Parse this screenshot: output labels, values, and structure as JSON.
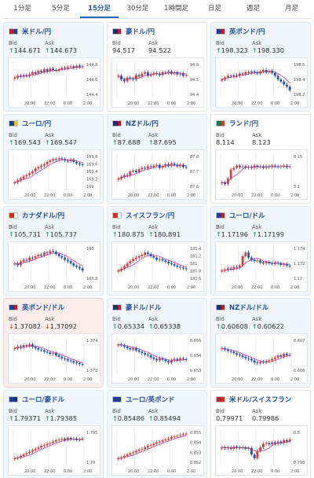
{
  "tabs": [
    "1分足",
    "5分足",
    "15分足",
    "30分足",
    "1時間足",
    "日足",
    "週足",
    "月足"
  ],
  "active_tab": 2,
  "labels": {
    "bid": "Bid",
    "ask": "Ask"
  },
  "cards": [
    {
      "pair": "米ドル/円",
      "bid": "144.671",
      "ask": "144.673",
      "trend": "up",
      "flag": [
        "#b22234",
        "#2b3a8c"
      ],
      "ticks": [
        "144.8",
        "144.6",
        "144.4"
      ],
      "times": [
        "20:00",
        "22:00",
        "0:00",
        "2:00"
      ],
      "series": [
        0.55,
        0.6,
        0.58,
        0.62,
        0.6,
        0.64,
        0.7,
        0.66,
        0.74,
        0.7,
        0.78,
        0.72,
        0.8,
        0.76,
        0.74,
        0.78,
        0.82,
        0.8,
        0.84,
        0.86,
        0.82,
        0.88,
        0.84,
        0.86
      ]
    },
    {
      "pair": "豪ドル/円",
      "bid": "94.517",
      "ask": "94.522",
      "trend": "neutral",
      "flag": [
        "#1a2e6e",
        "#c8102e"
      ],
      "ticks": [
        "94.6",
        "94.5",
        "94.4"
      ],
      "times": [
        "20:00",
        "22:00",
        "0:00",
        "2:00"
      ],
      "series": [
        0.6,
        0.5,
        0.45,
        0.55,
        0.52,
        0.5,
        0.62,
        0.58,
        0.66,
        0.7,
        0.6,
        0.64,
        0.68,
        0.66,
        0.62,
        0.7,
        0.68,
        0.72,
        0.66,
        0.7,
        0.64,
        0.66,
        0.6,
        0.62
      ]
    },
    {
      "pair": "英ポンド/円",
      "bid": "198.323",
      "ask": "198.330",
      "trend": "up",
      "flag": [
        "#1f3e8c",
        "#c8102e"
      ],
      "ticks": [
        "198.6",
        "198.4",
        "198.2"
      ],
      "times": [
        "20:00",
        "22:00",
        "0:00",
        "2:00"
      ],
      "series": [
        0.5,
        0.55,
        0.6,
        0.58,
        0.62,
        0.6,
        0.66,
        0.64,
        0.7,
        0.68,
        0.72,
        0.7,
        0.66,
        0.72,
        0.76,
        0.7,
        0.74,
        0.68,
        0.6,
        0.5,
        0.44,
        0.36,
        0.3,
        0.2
      ]
    },
    {
      "pair": "ユーロ/円",
      "bid": "169.543",
      "ask": "169.547",
      "trend": "up",
      "flag": [
        "#1d3f9a",
        "#f2c500"
      ],
      "ticks": [
        "169.8",
        "169.6",
        "169.4",
        "169.2",
        "169"
      ],
      "times": [
        "20:00",
        "22:00",
        "0:00",
        "2:00"
      ],
      "series": [
        0.2,
        0.25,
        0.3,
        0.36,
        0.4,
        0.45,
        0.5,
        0.58,
        0.62,
        0.66,
        0.7,
        0.76,
        0.8,
        0.84,
        0.82,
        0.86,
        0.84,
        0.8,
        0.78,
        0.82,
        0.76,
        0.72,
        0.7,
        0.68
      ]
    },
    {
      "pair": "NZドル/円",
      "bid": "87.688",
      "ask": "87.695",
      "trend": "up",
      "flag": [
        "#1a2e6e",
        "#c8102e"
      ],
      "ticks": [
        "87.8",
        "87.7",
        "87.6"
      ],
      "times": [
        "20:00",
        "22:00",
        "0:00",
        "2:00"
      ],
      "series": [
        0.3,
        0.35,
        0.4,
        0.38,
        0.5,
        0.52,
        0.48,
        0.56,
        0.6,
        0.58,
        0.64,
        0.62,
        0.66,
        0.68,
        0.6,
        0.64,
        0.7,
        0.66,
        0.72,
        0.68,
        0.64,
        0.68,
        0.62,
        0.6
      ]
    },
    {
      "pair": "ランド/円",
      "bid": "8.114",
      "ask": "8.123",
      "trend": "neutral",
      "flag": [
        "#007a4d",
        "#de3831"
      ],
      "ticks": [
        "8.15",
        "8.1"
      ],
      "times": [
        "20:00",
        "22:00",
        "0:00",
        "2:00"
      ],
      "series": [
        0.2,
        0.15,
        0.3,
        0.55,
        0.6,
        0.66,
        0.62,
        0.64,
        0.6,
        0.62,
        0.6,
        0.66,
        0.62,
        0.64,
        0.6,
        0.64,
        0.62,
        0.66,
        0.64,
        0.62,
        0.64,
        0.66,
        0.62,
        0.64
      ]
    },
    {
      "pair": "カナダドル/円",
      "bid": "105.731",
      "ask": "105.737",
      "trend": "up",
      "flag": [
        "#d52b1e",
        "#ffffff"
      ],
      "ticks": [
        "106",
        "105.8"
      ],
      "times": [
        "20:00",
        "22:00",
        "0:00",
        "2:00"
      ],
      "series": [
        0.5,
        0.45,
        0.55,
        0.6,
        0.58,
        0.66,
        0.64,
        0.7,
        0.74,
        0.72,
        0.8,
        0.78,
        0.84,
        0.82,
        0.76,
        0.7,
        0.66,
        0.6,
        0.56,
        0.5,
        0.44,
        0.4,
        0.36,
        0.3
      ]
    },
    {
      "pair": "スイスフラン/円",
      "bid": "180.875",
      "ask": "180.891",
      "trend": "up",
      "flag": [
        "#d52b1e",
        "#ffffff"
      ],
      "ticks": [
        "181.4",
        "181.2",
        "181",
        "180.8",
        "180.6"
      ],
      "times": [
        "20:00",
        "22:00",
        "0:00",
        "2:00"
      ],
      "series": [
        0.3,
        0.35,
        0.42,
        0.5,
        0.56,
        0.62,
        0.66,
        0.7,
        0.74,
        0.8,
        0.76,
        0.7,
        0.66,
        0.6,
        0.62,
        0.58,
        0.54,
        0.5,
        0.48,
        0.44,
        0.4,
        0.38,
        0.36,
        0.34
      ]
    },
    {
      "pair": "ユーロ/ドル",
      "bid": "1.17196",
      "ask": "1.17199",
      "trend": "up",
      "flag": [
        "#1d3f9a",
        "#b22234"
      ],
      "ticks": [
        "1.174",
        "1.172",
        "1.17"
      ],
      "times": [
        "20:00",
        "22:00",
        "0:00",
        "2:00"
      ],
      "series": [
        0.3,
        0.32,
        0.36,
        0.34,
        0.4,
        0.38,
        0.44,
        0.7,
        0.8,
        0.66,
        0.6,
        0.56,
        0.58,
        0.52,
        0.5,
        0.54,
        0.5,
        0.48,
        0.52,
        0.5,
        0.46,
        0.48,
        0.44,
        0.42
      ]
    },
    {
      "pair": "英ポンド/ドル",
      "bid": "1.37082",
      "ask": "1.37092",
      "trend": "down",
      "flag": [
        "#1f3e8c",
        "#b22234"
      ],
      "ticks": [
        "1.374",
        "1.372"
      ],
      "times": [
        "20:00",
        "22:00",
        "0:00",
        "2:00"
      ],
      "series": [
        0.7,
        0.74,
        0.72,
        0.78,
        0.76,
        0.8,
        0.74,
        0.7,
        0.66,
        0.64,
        0.6,
        0.58,
        0.54,
        0.56,
        0.5,
        0.46,
        0.42,
        0.4,
        0.36,
        0.34,
        0.3,
        0.28,
        0.26,
        0.24
      ]
    },
    {
      "pair": "豪ドル/ドル",
      "bid": "0.65334",
      "ask": "0.65338",
      "trend": "up",
      "flag": [
        "#1a2e6e",
        "#b22234"
      ],
      "ticks": [
        "0.655",
        "0.654",
        "0.653"
      ],
      "times": [
        "20:00",
        "22:00",
        "0:00",
        "2:00"
      ],
      "series": [
        0.8,
        0.78,
        0.74,
        0.7,
        0.66,
        0.7,
        0.64,
        0.6,
        0.56,
        0.52,
        0.5,
        0.44,
        0.4,
        0.36,
        0.42,
        0.38,
        0.34,
        0.3,
        0.36,
        0.4,
        0.36,
        0.42,
        0.4,
        0.38
      ]
    },
    {
      "pair": "NZドル/ドル",
      "bid": "0.60608",
      "ask": "0.60622",
      "trend": "up",
      "flag": [
        "#1a2e6e",
        "#b22234"
      ],
      "ticks": [
        "0.607",
        "0.606"
      ],
      "times": [
        "20:00",
        "22:00",
        "0:00",
        "2:00"
      ],
      "series": [
        0.7,
        0.66,
        0.62,
        0.6,
        0.56,
        0.52,
        0.5,
        0.46,
        0.42,
        0.4,
        0.36,
        0.3,
        0.28,
        0.32,
        0.3,
        0.34,
        0.36,
        0.4,
        0.44,
        0.5,
        0.46,
        0.54,
        0.5,
        0.52
      ]
    },
    {
      "pair": "ユーロ/豪ドル",
      "bid": "1.79371",
      "ask": "1.79385",
      "trend": "up",
      "flag": [
        "#1d3f9a",
        "#1a2e6e"
      ],
      "ticks": [
        "1.795",
        "1.79"
      ],
      "times": [
        "20:00",
        "22:00",
        "0:00",
        "2:00"
      ],
      "series": [
        0.2,
        0.22,
        0.26,
        0.3,
        0.34,
        0.38,
        0.42,
        0.46,
        0.5,
        0.54,
        0.56,
        0.6,
        0.62,
        0.66,
        0.7,
        0.72,
        0.74,
        0.7,
        0.76,
        0.72,
        0.74,
        0.7,
        0.72,
        0.74
      ]
    },
    {
      "pair": "ユーロ/英ポンド",
      "bid": "0.85486",
      "ask": "0.85494",
      "trend": "up",
      "flag": [
        "#1d3f9a",
        "#1f3e8c"
      ],
      "ticks": [
        "0.855",
        "0.854",
        "0.853",
        "0.852"
      ],
      "times": [
        "20:00",
        "22:00",
        "0:00",
        "2:00"
      ],
      "series": [
        0.2,
        0.22,
        0.26,
        0.3,
        0.34,
        0.36,
        0.4,
        0.44,
        0.46,
        0.5,
        0.54,
        0.56,
        0.6,
        0.64,
        0.66,
        0.7,
        0.72,
        0.74,
        0.78,
        0.8,
        0.82,
        0.84,
        0.86,
        0.88
      ]
    },
    {
      "pair": "米ドル/スイスフラン",
      "bid": "0.79971",
      "ask": "0.79986",
      "trend": "neutral",
      "flag": [
        "#b22234",
        "#d52b1e"
      ],
      "ticks": [
        "0.8",
        "0.798"
      ],
      "times": [
        "20:00",
        "22:00",
        "0:00",
        "2:00"
      ],
      "series": [
        0.5,
        0.48,
        0.5,
        0.46,
        0.52,
        0.5,
        0.48,
        0.5,
        0.46,
        0.48,
        0.3,
        0.2,
        0.4,
        0.5,
        0.6,
        0.62,
        0.58,
        0.64,
        0.6,
        0.66,
        0.62,
        0.7,
        0.66,
        0.72
      ]
    }
  ]
}
